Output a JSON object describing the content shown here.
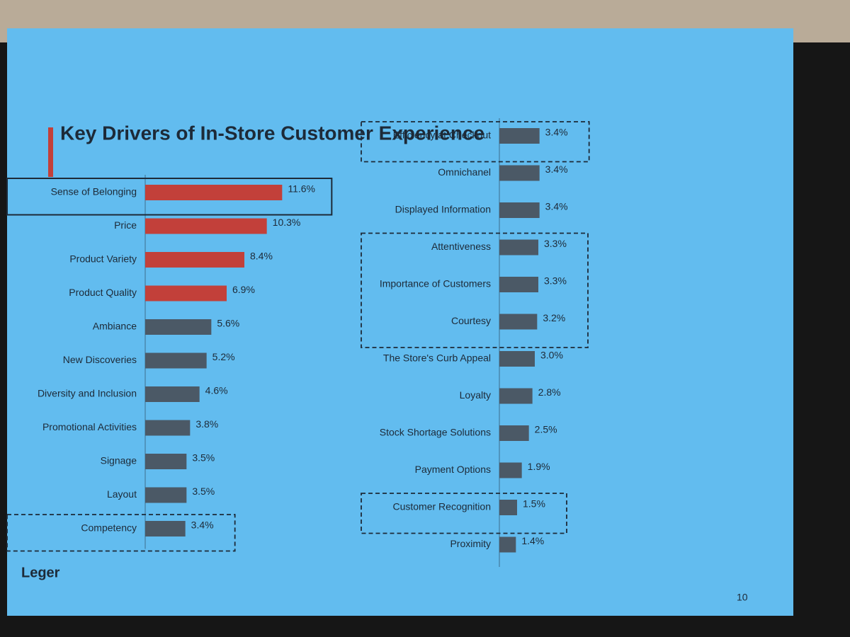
{
  "chart_data": [
    {
      "type": "bar",
      "orientation": "horizontal",
      "title": "Key Drivers of In-Store Customer Experience",
      "categories": [
        "Sense of Belonging",
        "Price",
        "Product Variety",
        "Product Quality",
        "Ambiance",
        "New Discoveries",
        "Diversity and Inclusion",
        "Promotional Activities",
        "Signage",
        "Layout",
        "Competency"
      ],
      "values": [
        11.6,
        10.3,
        8.4,
        6.9,
        5.6,
        5.2,
        4.6,
        3.8,
        3.5,
        3.5,
        3.4
      ],
      "value_labels": [
        "11.6%",
        "10.3%",
        "8.4%",
        "6.9%",
        "5.6%",
        "5.2%",
        "4.6%",
        "3.8%",
        "3.5%",
        "3.5%",
        "3.4%"
      ],
      "colors": [
        "#c2403a",
        "#c2403a",
        "#c2403a",
        "#c2403a",
        "#4b5966",
        "#4b5966",
        "#4b5966",
        "#4b5966",
        "#4b5966",
        "#4b5966",
        "#4b5966"
      ],
      "xlim": [
        0,
        12
      ],
      "boxes": [
        {
          "start": 0,
          "end": 0,
          "style": "solid"
        },
        {
          "start": 10,
          "end": 10,
          "style": "dashed"
        }
      ]
    },
    {
      "type": "bar",
      "orientation": "horizontal",
      "categories": [
        "Efficiency at Checkout",
        "Omnichanel",
        "Displayed Information",
        "Attentiveness",
        "Importance of Customers",
        "Courtesy",
        "The Store's Curb Appeal",
        "Loyalty",
        "Stock Shortage Solutions",
        "Payment Options",
        "Customer Recognition",
        "Proximity"
      ],
      "values": [
        3.4,
        3.4,
        3.4,
        3.3,
        3.3,
        3.2,
        3.0,
        2.8,
        2.5,
        1.9,
        1.5,
        1.4
      ],
      "value_labels": [
        "3.4%",
        "3.4%",
        "3.4%",
        "3.3%",
        "3.3%",
        "3.2%",
        "3.0%",
        "2.8%",
        "2.5%",
        "1.9%",
        "1.5%",
        "1.4%"
      ],
      "colors": [
        "#4b5966",
        "#4b5966",
        "#4b5966",
        "#4b5966",
        "#4b5966",
        "#4b5966",
        "#4b5966",
        "#4b5966",
        "#4b5966",
        "#4b5966",
        "#4b5966",
        "#4b5966"
      ],
      "xlim": [
        0,
        12
      ],
      "boxes": [
        {
          "start": 0,
          "end": 0,
          "style": "dashed"
        },
        {
          "start": 3,
          "end": 5,
          "style": "dashed"
        },
        {
          "start": 10,
          "end": 10,
          "style": "dashed"
        }
      ]
    }
  ],
  "logo": "Leger",
  "page_number": "10"
}
